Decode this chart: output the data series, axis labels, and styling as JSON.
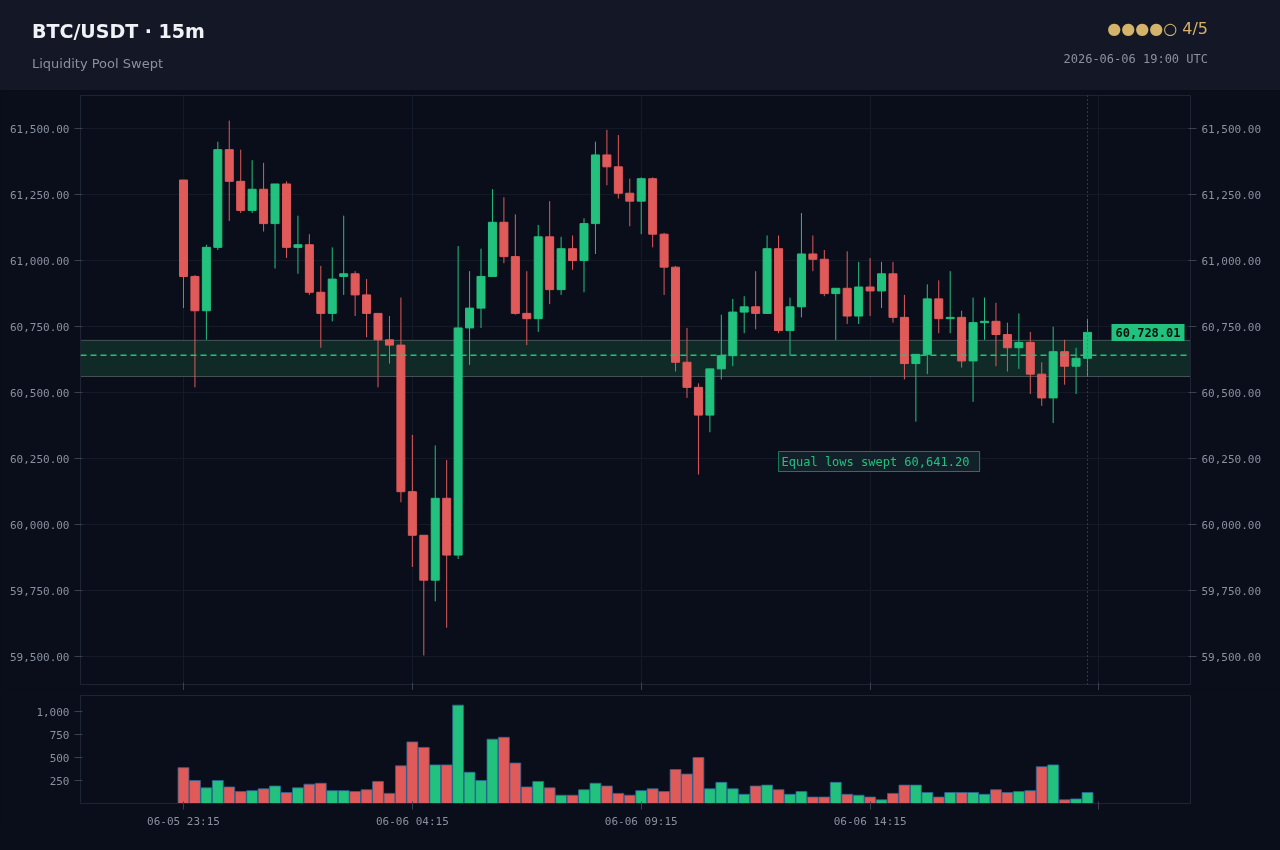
{
  "chart_data": [
    {
      "type": "candlestick",
      "title": "BTC/USDT  ·  15m",
      "subtitle": "Liquidity Pool Swept",
      "annotations": [
        "●●●●○  4/5",
        "2026-06-06 19:00 UTC",
        {
          "text": "60,728.01",
          "x": "2026-06-06T19:00",
          "y": 60728.01
        }
      ],
      "x": [
        "2026-06-05T23:15",
        "2026-06-05T23:30",
        "2026-06-05T23:45",
        "2026-06-06T00:00",
        "2026-06-06T00:15",
        "2026-06-06T00:30",
        "2026-06-06T00:45",
        "2026-06-06T01:00",
        "2026-06-06T01:15",
        "2026-06-06T01:30",
        "2026-06-06T01:45",
        "2026-06-06T02:00",
        "2026-06-06T02:15",
        "2026-06-06T02:30",
        "2026-06-06T02:45",
        "2026-06-06T03:00",
        "2026-06-06T03:15",
        "2026-06-06T03:30",
        "2026-06-06T03:45",
        "2026-06-06T04:00",
        "2026-06-06T04:15",
        "2026-06-06T04:30",
        "2026-06-06T04:45",
        "2026-06-06T05:00",
        "2026-06-06T05:15",
        "2026-06-06T05:30",
        "2026-06-06T05:45",
        "2026-06-06T06:00",
        "2026-06-06T06:15",
        "2026-06-06T06:30",
        "2026-06-06T06:45",
        "2026-06-06T07:00",
        "2026-06-06T07:15",
        "2026-06-06T07:30",
        "2026-06-06T07:45",
        "2026-06-06T08:00",
        "2026-06-06T08:15",
        "2026-06-06T08:30",
        "2026-06-06T08:45",
        "2026-06-06T09:00",
        "2026-06-06T09:15",
        "2026-06-06T09:30",
        "2026-06-06T09:45",
        "2026-06-06T10:00",
        "2026-06-06T10:15",
        "2026-06-06T10:30",
        "2026-06-06T10:45",
        "2026-06-06T11:00",
        "2026-06-06T11:15",
        "2026-06-06T11:30",
        "2026-06-06T11:45",
        "2026-06-06T12:00",
        "2026-06-06T12:15",
        "2026-06-06T12:30",
        "2026-06-06T12:45",
        "2026-06-06T13:00",
        "2026-06-06T13:15",
        "2026-06-06T13:30",
        "2026-06-06T13:45",
        "2026-06-06T14:00",
        "2026-06-06T14:15",
        "2026-06-06T14:30",
        "2026-06-06T14:45",
        "2026-06-06T15:00",
        "2026-06-06T15:15",
        "2026-06-06T15:30",
        "2026-06-06T15:45",
        "2026-06-06T16:00",
        "2026-06-06T16:15",
        "2026-06-06T16:30",
        "2026-06-06T16:45",
        "2026-06-06T17:00",
        "2026-06-06T17:15",
        "2026-06-06T17:30",
        "2026-06-06T17:45",
        "2026-06-06T18:00",
        "2026-06-06T18:15",
        "2026-06-06T18:30",
        "2026-06-06T18:45",
        "2026-06-06T19:00"
      ],
      "ohlc": [
        [
          61305,
          61305,
          60820,
          60940
        ],
        [
          60940,
          60945,
          60520,
          60810
        ],
        [
          60810,
          61060,
          60700,
          61050
        ],
        [
          61050,
          61450,
          61040,
          61420
        ],
        [
          61420,
          61530,
          61150,
          61300
        ],
        [
          61300,
          61420,
          61180,
          61190
        ],
        [
          61190,
          61380,
          61180,
          61270
        ],
        [
          61270,
          61370,
          61110,
          61140
        ],
        [
          61140,
          61290,
          60970,
          61290
        ],
        [
          61290,
          61300,
          61010,
          61050
        ],
        [
          61050,
          61170,
          60950,
          61060
        ],
        [
          61060,
          61100,
          60870,
          60880
        ],
        [
          60880,
          60980,
          60670,
          60800
        ],
        [
          60800,
          61050,
          60770,
          60930
        ],
        [
          60940,
          61170,
          60870,
          60950
        ],
        [
          60950,
          60960,
          60790,
          60870
        ],
        [
          60870,
          60930,
          60710,
          60800
        ],
        [
          60800,
          60800,
          60520,
          60700
        ],
        [
          60700,
          60790,
          60610,
          60680
        ],
        [
          60680,
          60860,
          60085,
          60125
        ],
        [
          60125,
          60340,
          59840,
          59960
        ],
        [
          59960,
          59960,
          59505,
          59790
        ],
        [
          59790,
          60300,
          59710,
          60100
        ],
        [
          60100,
          60245,
          59610,
          59885
        ],
        [
          59885,
          61055,
          59870,
          60745
        ],
        [
          60745,
          60960,
          60605,
          60820
        ],
        [
          60820,
          61045,
          60745,
          60940
        ],
        [
          60940,
          61270,
          60940,
          61145
        ],
        [
          61145,
          61240,
          60990,
          61015
        ],
        [
          61015,
          61175,
          60795,
          60800
        ],
        [
          60800,
          60960,
          60680,
          60780
        ],
        [
          60780,
          61135,
          60730,
          61090
        ],
        [
          61090,
          61225,
          60835,
          60890
        ],
        [
          60890,
          61090,
          60870,
          61045
        ],
        [
          61045,
          61095,
          60965,
          61000
        ],
        [
          61000,
          61160,
          60880,
          61140
        ],
        [
          61140,
          61450,
          61025,
          61400
        ],
        [
          61400,
          61495,
          61285,
          61355
        ],
        [
          61355,
          61475,
          61235,
          61255
        ],
        [
          61255,
          61310,
          61130,
          61225
        ],
        [
          61225,
          61315,
          61100,
          61310
        ],
        [
          61310,
          61315,
          61050,
          61100
        ],
        [
          61100,
          61105,
          60870,
          60975
        ],
        [
          60975,
          60980,
          60580,
          60615
        ],
        [
          60615,
          60745,
          60480,
          60520
        ],
        [
          60520,
          60535,
          60190,
          60415
        ],
        [
          60415,
          60590,
          60350,
          60590
        ],
        [
          60590,
          60795,
          60550,
          60640
        ],
        [
          60640,
          60855,
          60600,
          60805
        ],
        [
          60805,
          60865,
          60725,
          60825
        ],
        [
          60825,
          60960,
          60740,
          60800
        ],
        [
          60800,
          61095,
          60800,
          61045
        ],
        [
          61045,
          61095,
          60725,
          60735
        ],
        [
          60735,
          60860,
          60640,
          60825
        ],
        [
          60825,
          61180,
          60785,
          61025
        ],
        [
          61025,
          61095,
          60960,
          61005
        ],
        [
          61005,
          61040,
          60865,
          60875
        ],
        [
          60875,
          60895,
          60700,
          60895
        ],
        [
          60895,
          61035,
          60760,
          60790
        ],
        [
          60790,
          60995,
          60760,
          60900
        ],
        [
          60900,
          61010,
          60790,
          60885
        ],
        [
          60885,
          60995,
          60820,
          60950
        ],
        [
          60950,
          60995,
          60765,
          60785
        ],
        [
          60785,
          60870,
          60550,
          60610
        ],
        [
          60610,
          60645,
          60390,
          60645
        ],
        [
          60645,
          60910,
          60570,
          60855
        ],
        [
          60855,
          60925,
          60725,
          60780
        ],
        [
          60780,
          60960,
          60725,
          60785
        ],
        [
          60785,
          60810,
          60595,
          60620
        ],
        [
          60620,
          60860,
          60465,
          60765
        ],
        [
          60765,
          60860,
          60700,
          60770
        ],
        [
          60770,
          60840,
          60600,
          60720
        ],
        [
          60720,
          60765,
          60580,
          60670
        ],
        [
          60670,
          60800,
          60590,
          60690
        ],
        [
          60690,
          60730,
          60495,
          60570
        ],
        [
          60570,
          60615,
          60450,
          60480
        ],
        [
          60480,
          60750,
          60385,
          60655
        ],
        [
          60655,
          60700,
          60530,
          60600
        ],
        [
          60600,
          60670,
          60495,
          60630
        ],
        [
          60630,
          60780,
          60560,
          60728.01
        ]
      ],
      "colors": [
        "#e05a5a",
        "#e05a5a",
        "#22c17e",
        "#22c17e",
        "#e05a5a",
        "#e05a5a",
        "#22c17e",
        "#e05a5a",
        "#22c17e",
        "#e05a5a",
        "#22c17e",
        "#e05a5a",
        "#e05a5a",
        "#22c17e",
        "#22c17e",
        "#e05a5a",
        "#e05a5a",
        "#e05a5a",
        "#e05a5a",
        "#e05a5a",
        "#e05a5a",
        "#e05a5a",
        "#22c17e",
        "#e05a5a",
        "#22c17e",
        "#22c17e",
        "#22c17e",
        "#22c17e",
        "#e05a5a",
        "#e05a5a",
        "#e05a5a",
        "#22c17e",
        "#e05a5a",
        "#22c17e",
        "#e05a5a",
        "#22c17e",
        "#22c17e",
        "#e05a5a",
        "#e05a5a",
        "#e05a5a",
        "#22c17e",
        "#e05a5a",
        "#e05a5a",
        "#e05a5a",
        "#e05a5a",
        "#e05a5a",
        "#22c17e",
        "#22c17e",
        "#22c17e",
        "#22c17e",
        "#e05a5a",
        "#22c17e",
        "#e05a5a",
        "#22c17e",
        "#22c17e",
        "#e05a5a",
        "#e05a5a",
        "#22c17e",
        "#e05a5a",
        "#22c17e",
        "#e05a5a",
        "#22c17e",
        "#e05a5a",
        "#e05a5a",
        "#22c17e",
        "#22c17e",
        "#e05a5a",
        "#22c17e",
        "#e05a5a",
        "#22c17e",
        "#22c17e",
        "#e05a5a",
        "#e05a5a",
        "#22c17e",
        "#e05a5a",
        "#e05a5a",
        "#22c17e",
        "#e05a5a",
        "#22c17e",
        "#22c17e"
      ],
      "xlim": [
        "2026-06-05T21:00",
        "2026-06-06T21:15"
      ],
      "xticks": [
        {
          "value": "2026-06-05T23:15",
          "label": null
        },
        {
          "value": "2026-06-06T04:15",
          "label": null
        },
        {
          "value": "2026-06-06T09:15",
          "label": null
        },
        {
          "value": "2026-06-06T14:15",
          "label": null
        },
        {
          "value": "2026-06-06T19:15",
          "label": null
        }
      ],
      "ylim": [
        59395,
        61625
      ],
      "yticks": [
        {
          "value": 59500,
          "label": "59,500.00"
        },
        {
          "value": 59750,
          "label": "59,750.00"
        },
        {
          "value": 60000,
          "label": "60,000.00"
        },
        {
          "value": 60250,
          "label": "60,250.00"
        },
        {
          "value": 60500,
          "label": "60,500.00"
        },
        {
          "value": 60750,
          "label": "60,750.00"
        },
        {
          "value": 61000,
          "label": "61,000.00"
        },
        {
          "value": 61250,
          "label": "61,250.00"
        },
        {
          "value": 61500,
          "label": "61,500.00"
        }
      ],
      "y2lim": [
        59395,
        61625
      ],
      "y2ticks": [
        {
          "value": 59500,
          "label": "59,500.00"
        },
        {
          "value": 59750,
          "label": "59,750.00"
        },
        {
          "value": 60000,
          "label": "60,000.00"
        },
        {
          "value": 60250,
          "label": "60,250.00"
        },
        {
          "value": 60500,
          "label": "60,500.00"
        },
        {
          "value": 60750,
          "label": "60,750.00"
        },
        {
          "value": 61000,
          "label": "61,000.00"
        },
        {
          "value": 61250,
          "label": "61,250.00"
        },
        {
          "value": 61500,
          "label": "61,500.00"
        }
      ],
      "tick_labels": "y",
      "grid": true,
      "ref_lines": [
        {
          "axis": "y",
          "value": 60641.2,
          "label": "Equal lows swept  60,641.20",
          "color": "#22c17e",
          "line_style": "dashed"
        },
        {
          "axis": "x",
          "value": "2026-06-06T19:00",
          "label": null,
          "color": "#5a6070",
          "line_style": "dotted"
        }
      ],
      "bands": [
        {
          "axis": "y",
          "from": 60561,
          "to": 60698,
          "label": null,
          "color": "#0f2a27"
        }
      ]
    },
    {
      "type": "bar",
      "x": [
        "2026-06-05T23:15",
        "2026-06-05T23:30",
        "2026-06-05T23:45",
        "2026-06-06T00:00",
        "2026-06-06T00:15",
        "2026-06-06T00:30",
        "2026-06-06T00:45",
        "2026-06-06T01:00",
        "2026-06-06T01:15",
        "2026-06-06T01:30",
        "2026-06-06T01:45",
        "2026-06-06T02:00",
        "2026-06-06T02:15",
        "2026-06-06T02:30",
        "2026-06-06T02:45",
        "2026-06-06T03:00",
        "2026-06-06T03:15",
        "2026-06-06T03:30",
        "2026-06-06T03:45",
        "2026-06-06T04:00",
        "2026-06-06T04:15",
        "2026-06-06T04:30",
        "2026-06-06T04:45",
        "2026-06-06T05:00",
        "2026-06-06T05:15",
        "2026-06-06T05:30",
        "2026-06-06T05:45",
        "2026-06-06T06:00",
        "2026-06-06T06:15",
        "2026-06-06T06:30",
        "2026-06-06T06:45",
        "2026-06-06T07:00",
        "2026-06-06T07:15",
        "2026-06-06T07:30",
        "2026-06-06T07:45",
        "2026-06-06T08:00",
        "2026-06-06T08:15",
        "2026-06-06T08:30",
        "2026-06-06T08:45",
        "2026-06-06T09:00",
        "2026-06-06T09:15",
        "2026-06-06T09:30",
        "2026-06-06T09:45",
        "2026-06-06T10:00",
        "2026-06-06T10:15",
        "2026-06-06T10:30",
        "2026-06-06T10:45",
        "2026-06-06T11:00",
        "2026-06-06T11:15",
        "2026-06-06T11:30",
        "2026-06-06T11:45",
        "2026-06-06T12:00",
        "2026-06-06T12:15",
        "2026-06-06T12:30",
        "2026-06-06T12:45",
        "2026-06-06T13:00",
        "2026-06-06T13:15",
        "2026-06-06T13:30",
        "2026-06-06T13:45",
        "2026-06-06T14:00",
        "2026-06-06T14:15",
        "2026-06-06T14:30",
        "2026-06-06T14:45",
        "2026-06-06T15:00",
        "2026-06-06T15:15",
        "2026-06-06T15:30",
        "2026-06-06T15:45",
        "2026-06-06T16:00",
        "2026-06-06T16:15",
        "2026-06-06T16:30",
        "2026-06-06T16:45",
        "2026-06-06T17:00",
        "2026-06-06T17:15",
        "2026-06-06T17:30",
        "2026-06-06T17:45",
        "2026-06-06T18:00",
        "2026-06-06T18:15",
        "2026-06-06T18:30",
        "2026-06-06T18:45",
        "2026-06-06T19:00"
      ],
      "values": [
        390,
        250,
        170,
        250,
        180,
        130,
        140,
        160,
        190,
        120,
        170,
        210,
        220,
        140,
        140,
        130,
        150,
        240,
        110,
        410,
        670,
        610,
        420,
        420,
        1070,
        340,
        250,
        700,
        720,
        440,
        180,
        240,
        170,
        90,
        90,
        150,
        220,
        190,
        110,
        90,
        140,
        160,
        130,
        370,
        320,
        500,
        160,
        230,
        160,
        100,
        190,
        200,
        150,
        100,
        130,
        70,
        70,
        230,
        100,
        90,
        70,
        40,
        110,
        200,
        200,
        120,
        70,
        120,
        120,
        120,
        100,
        150,
        120,
        130,
        140,
        400,
        420,
        40,
        50,
        120
      ],
      "colors": [
        "#e05a5a",
        "#e05a5a",
        "#22c17e",
        "#22c17e",
        "#e05a5a",
        "#e05a5a",
        "#22c17e",
        "#e05a5a",
        "#22c17e",
        "#e05a5a",
        "#22c17e",
        "#e05a5a",
        "#e05a5a",
        "#22c17e",
        "#22c17e",
        "#e05a5a",
        "#e05a5a",
        "#e05a5a",
        "#e05a5a",
        "#e05a5a",
        "#e05a5a",
        "#e05a5a",
        "#22c17e",
        "#e05a5a",
        "#22c17e",
        "#22c17e",
        "#22c17e",
        "#22c17e",
        "#e05a5a",
        "#e05a5a",
        "#e05a5a",
        "#22c17e",
        "#e05a5a",
        "#22c17e",
        "#e05a5a",
        "#22c17e",
        "#22c17e",
        "#e05a5a",
        "#e05a5a",
        "#e05a5a",
        "#22c17e",
        "#e05a5a",
        "#e05a5a",
        "#e05a5a",
        "#e05a5a",
        "#e05a5a",
        "#22c17e",
        "#22c17e",
        "#22c17e",
        "#22c17e",
        "#e05a5a",
        "#22c17e",
        "#e05a5a",
        "#22c17e",
        "#22c17e",
        "#e05a5a",
        "#e05a5a",
        "#22c17e",
        "#e05a5a",
        "#22c17e",
        "#e05a5a",
        "#22c17e",
        "#e05a5a",
        "#e05a5a",
        "#22c17e",
        "#22c17e",
        "#e05a5a",
        "#22c17e",
        "#e05a5a",
        "#22c17e",
        "#22c17e",
        "#e05a5a",
        "#e05a5a",
        "#22c17e",
        "#e05a5a",
        "#e05a5a",
        "#22c17e",
        "#e05a5a",
        "#22c17e",
        "#22c17e"
      ],
      "xlim": [
        "2026-06-05T21:00",
        "2026-06-06T21:15"
      ],
      "xticks": [
        {
          "value": "2026-06-05T23:15",
          "label": "06-05 23:15"
        },
        {
          "value": "2026-06-06T04:15",
          "label": "06-06 04:15"
        },
        {
          "value": "2026-06-06T09:15",
          "label": "06-06 09:15"
        },
        {
          "value": "2026-06-06T14:15",
          "label": "06-06 14:15"
        },
        {
          "value": "2026-06-06T19:15",
          "label": null
        }
      ],
      "ylim": [
        0,
        1175
      ],
      "yticks": [
        250,
        500,
        750,
        {
          "value": 1000,
          "label": "1,000"
        }
      ],
      "grid": false
    }
  ]
}
